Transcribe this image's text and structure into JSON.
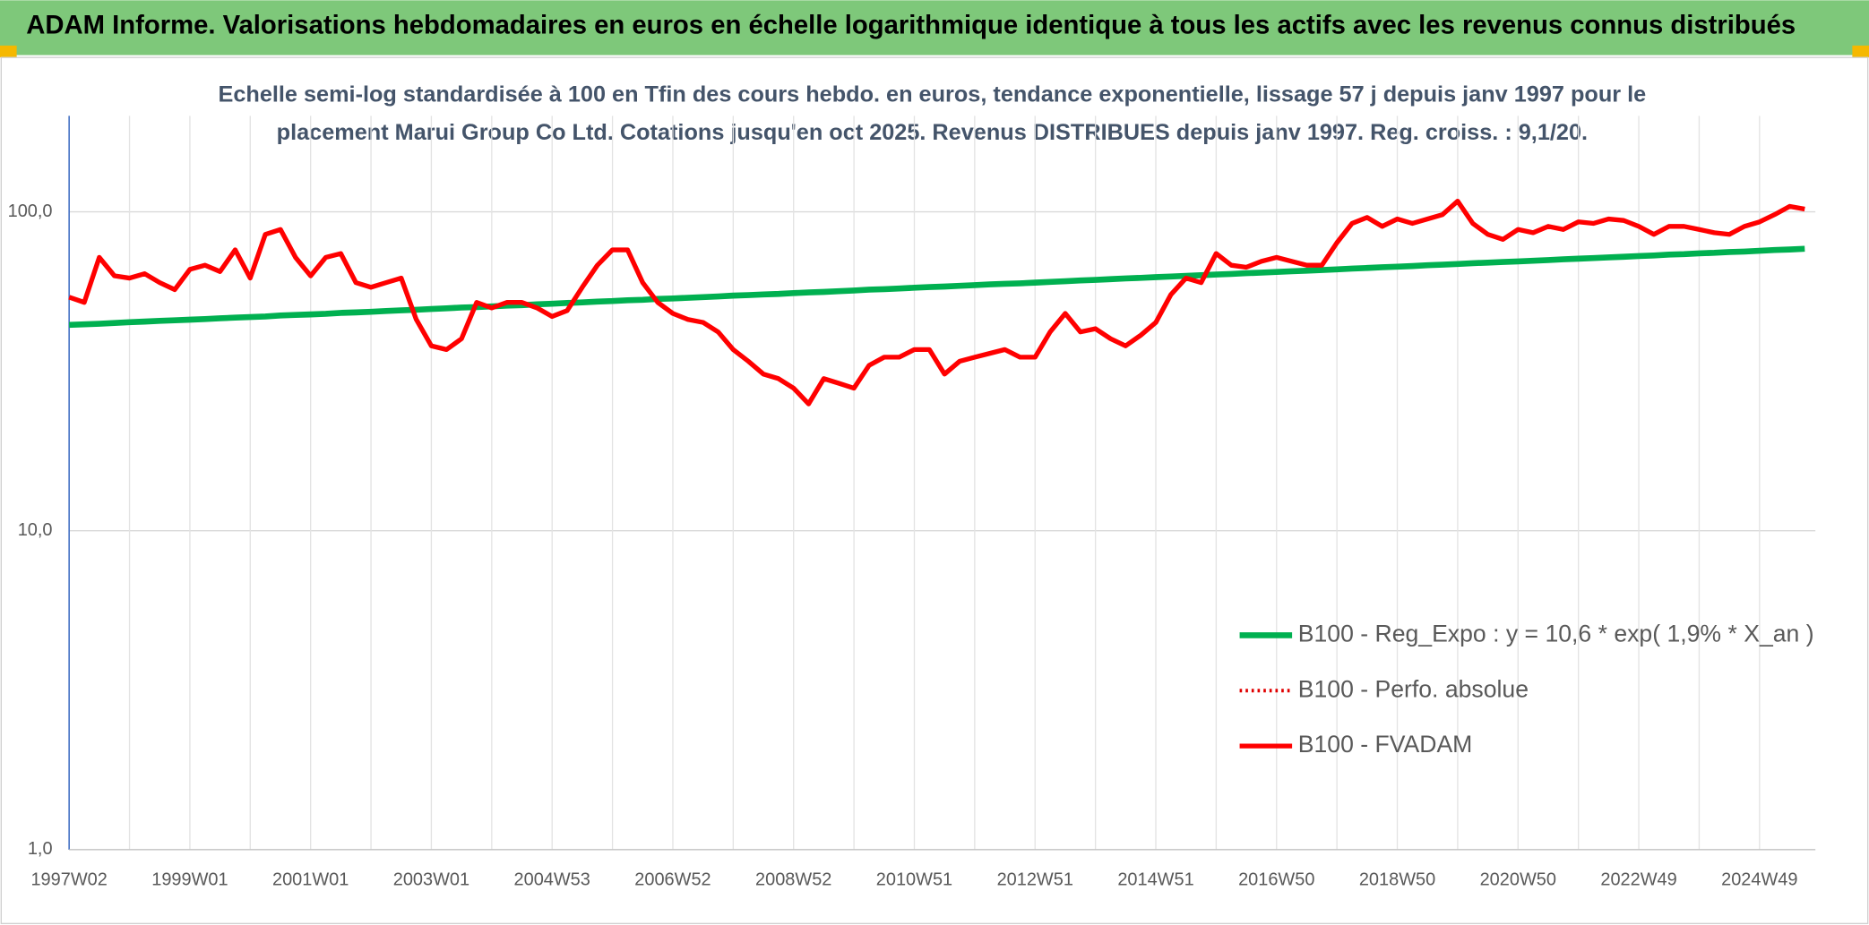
{
  "chart_data": {
    "type": "line",
    "title": "ADAM Informe. Valorisations hebdomadaires en euros en échelle logarithmique identique à tous les actifs avec les revenus connus distribués",
    "subtitle": [
      "Echelle semi-log standardisée à 100 en Tfin des cours hebdo. en euros, tendance exponentielle, lissage 57 j depuis janv 1997 pour le",
      "placement Marui Group Co Ltd. Cotations jusqu'en oct 2025. Revenus DISTRIBUES depuis janv 1997. Reg. croiss. : 9,1/20."
    ],
    "log_scale": true,
    "grid": true,
    "legend": "lower right",
    "ylim": [
      1,
      200
    ],
    "yticks": [
      {
        "value": 1,
        "label": "1,0"
      },
      {
        "value": 10,
        "label": "10,0"
      },
      {
        "value": 100,
        "label": "100,0"
      }
    ],
    "categories": [
      "1997W02",
      null,
      null,
      null,
      null,
      null,
      null,
      null,
      "1999W01",
      null,
      null,
      null,
      null,
      null,
      null,
      null,
      "2001W01",
      null,
      null,
      null,
      null,
      null,
      null,
      null,
      "2003W01",
      null,
      null,
      null,
      null,
      null,
      null,
      null,
      "2004W53",
      null,
      null,
      null,
      null,
      null,
      null,
      null,
      "2006W52",
      null,
      null,
      null,
      null,
      null,
      null,
      null,
      "2008W52",
      null,
      null,
      null,
      null,
      null,
      null,
      null,
      "2010W51",
      null,
      null,
      null,
      null,
      null,
      null,
      null,
      "2012W51",
      null,
      null,
      null,
      null,
      null,
      null,
      null,
      "2014W51",
      null,
      null,
      null,
      null,
      null,
      null,
      null,
      "2016W50",
      null,
      null,
      null,
      null,
      null,
      null,
      null,
      "2018W50",
      null,
      null,
      null,
      null,
      null,
      null,
      null,
      "2020W50",
      null,
      null,
      null,
      null,
      null,
      null,
      null,
      "2022W49",
      null,
      null,
      null,
      null,
      null,
      null,
      null,
      "2024W49",
      null,
      null,
      null
    ],
    "series": [
      {
        "name": "B100 - Reg_Expo : y = 10,6 * exp( 1,9% *  X_an )",
        "color": "#00b050",
        "width": 5,
        "line_style": "solid",
        "values": [
          44.2,
          44.4,
          44.6,
          44.8,
          45.1,
          45.3,
          45.5,
          45.7,
          45.9,
          46.1,
          46.4,
          46.6,
          46.8,
          47.0,
          47.3,
          47.5,
          47.7,
          47.9,
          48.2,
          48.4,
          48.6,
          48.9,
          49.1,
          49.3,
          49.6,
          49.8,
          50.1,
          50.3,
          50.5,
          50.8,
          51.0,
          51.3,
          51.5,
          51.8,
          52.0,
          52.3,
          52.5,
          52.8,
          53.0,
          53.3,
          53.5,
          53.8,
          54.0,
          54.3,
          54.6,
          54.8,
          55.1,
          55.3,
          55.6,
          55.9,
          56.1,
          56.4,
          56.7,
          57.0,
          57.2,
          57.5,
          57.8,
          58.1,
          58.3,
          58.6,
          58.9,
          59.2,
          59.5,
          59.7,
          60.0,
          60.3,
          60.6,
          60.9,
          61.2,
          61.5,
          61.8,
          62.1,
          62.4,
          62.7,
          63.0,
          63.3,
          63.6,
          63.9,
          64.2,
          64.5,
          64.8,
          65.1,
          65.4,
          65.7,
          66.0,
          66.4,
          66.7,
          67.0,
          67.3,
          67.6,
          68.0,
          68.3,
          68.6,
          69.0,
          69.3,
          69.6,
          69.9,
          70.3,
          70.6,
          71.0,
          71.3,
          71.6,
          72.0,
          72.3,
          72.7,
          73.0,
          73.4,
          73.7,
          74.1,
          74.4,
          74.8,
          75.1,
          75.5,
          75.9,
          76.2,
          76.6
        ]
      },
      {
        "name": "B100 - Perfo. absolue",
        "color": "#e00000",
        "width": 3,
        "line_style": "dotted",
        "values": [
          null,
          null,
          null,
          null,
          null,
          null,
          null,
          null,
          null,
          null,
          null,
          null,
          null,
          null,
          null,
          null,
          null,
          null,
          null,
          null,
          null,
          null,
          null,
          null,
          null,
          null,
          null,
          null,
          null,
          null,
          null,
          null,
          null,
          null,
          null,
          null,
          null,
          null,
          null,
          null,
          null,
          null,
          null,
          null,
          null,
          null,
          null,
          null,
          null,
          null,
          null,
          null,
          null,
          null,
          null,
          null,
          null,
          null,
          null,
          null,
          null,
          null,
          null,
          null,
          null,
          null,
          null,
          null,
          null,
          null,
          null,
          null,
          null,
          null,
          null,
          null,
          null,
          null,
          null,
          null,
          null,
          null,
          null,
          null,
          null,
          null,
          null,
          null,
          null,
          null,
          null,
          null,
          null,
          null,
          null,
          null,
          null,
          null,
          null,
          null,
          null,
          null,
          null,
          null,
          null,
          null,
          null,
          null,
          null,
          null,
          null,
          null,
          null,
          null,
          null,
          null
        ]
      },
      {
        "name": "B100 - FVADAM",
        "color": "#ff0000",
        "width": 4,
        "line_style": "solid",
        "values": [
          54,
          52,
          72,
          63,
          62,
          64,
          60,
          57,
          66,
          68,
          65,
          76,
          62,
          85,
          88,
          72,
          63,
          72,
          74,
          60,
          58,
          60,
          62,
          46,
          38,
          37,
          40,
          52,
          50,
          52,
          52,
          50,
          47,
          49,
          58,
          68,
          76,
          76,
          60,
          52,
          48,
          46,
          45,
          42,
          37,
          34,
          31,
          30,
          28,
          25,
          30,
          29,
          28,
          33,
          35,
          35,
          37,
          37,
          31,
          34,
          35,
          36,
          37,
          35,
          35,
          42,
          48,
          42,
          43,
          40,
          38,
          41,
          45,
          55,
          62,
          60,
          74,
          68,
          67,
          70,
          72,
          70,
          68,
          68,
          80,
          92,
          96,
          90,
          95,
          92,
          95,
          98,
          108,
          92,
          85,
          82,
          88,
          86,
          90,
          88,
          93,
          92,
          95,
          94,
          90,
          85,
          90,
          90,
          88,
          86,
          85,
          90,
          93,
          98,
          104,
          102
        ]
      }
    ]
  }
}
